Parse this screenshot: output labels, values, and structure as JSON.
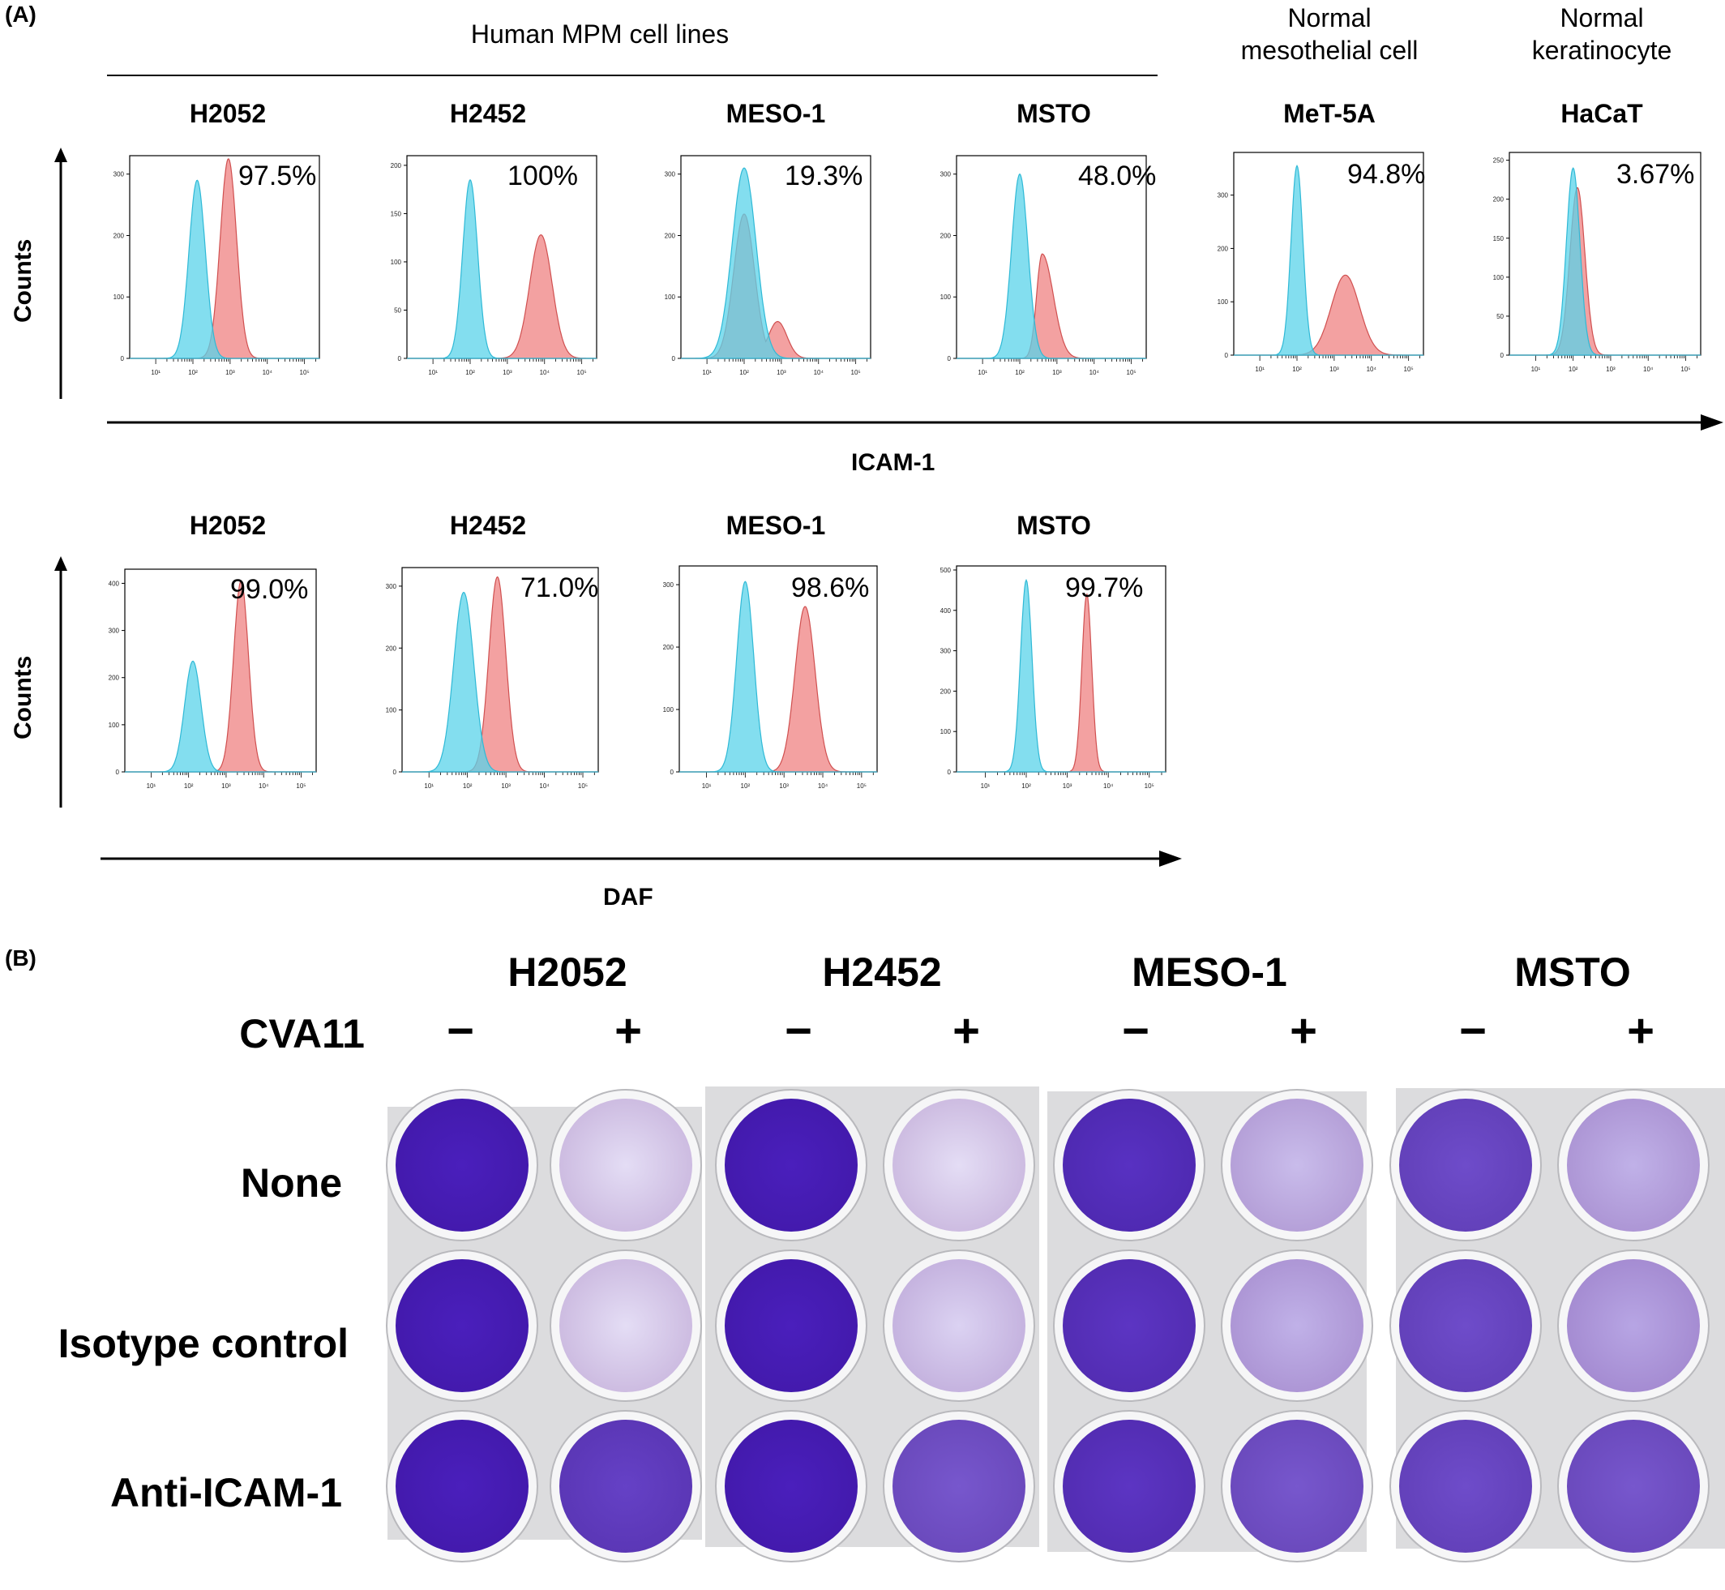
{
  "panel_a_letter": "(A)",
  "panel_b_letter": "(B)",
  "group_labels": {
    "mpm": "Human MPM cell lines",
    "mesothelial": "Normal mesothelial cell",
    "keratinocyte": "Normal keratinocyte"
  },
  "counts_label": "Counts",
  "icam_axis_label": "ICAM-1",
  "daf_axis_label": "DAF",
  "icam_histograms": [
    {
      "cell": "H2052",
      "pct": "97.5%",
      "y_ticks": [
        "0",
        "100",
        "200",
        "300"
      ],
      "y_max": 330
    },
    {
      "cell": "H2452",
      "pct": "100%",
      "y_ticks": [
        "0",
        "50",
        "100",
        "150",
        "200"
      ],
      "y_max": 210
    },
    {
      "cell": "MESO-1",
      "pct": "19.3%",
      "y_ticks": [
        "0",
        "100",
        "200",
        "300"
      ],
      "y_max": 330
    },
    {
      "cell": "MSTO",
      "pct": "48.0%",
      "y_ticks": [
        "0",
        "100",
        "200",
        "300"
      ],
      "y_max": 330
    },
    {
      "cell": "MeT-5A",
      "pct": "94.8%",
      "y_ticks": [
        "0",
        "100",
        "200",
        "300"
      ],
      "y_max": 380
    },
    {
      "cell": "HaCaT",
      "pct": "3.67%",
      "y_ticks": [
        "0",
        "50",
        "100",
        "150",
        "200",
        "250"
      ],
      "y_max": 260
    }
  ],
  "daf_histograms": [
    {
      "cell": "H2052",
      "pct": "99.0%",
      "y_ticks": [
        "0",
        "100",
        "200",
        "300",
        "400"
      ],
      "y_max": 430
    },
    {
      "cell": "H2452",
      "pct": "71.0%",
      "y_ticks": [
        "0",
        "100",
        "200",
        "300"
      ],
      "y_max": 330
    },
    {
      "cell": "MESO-1",
      "pct": "98.6%",
      "y_ticks": [
        "0",
        "100",
        "200",
        "300"
      ],
      "y_max": 330
    },
    {
      "cell": "MSTO",
      "pct": "99.7%",
      "y_ticks": [
        "0",
        "100",
        "200",
        "300",
        "400",
        "500"
      ],
      "y_max": 510
    }
  ],
  "x_ticks": [
    "10¹",
    "10²",
    "10³",
    "10⁴",
    "10⁵"
  ],
  "chart_data": [
    {
      "type": "area",
      "title": "H2052",
      "xlabel": "ICAM-1",
      "ylabel": "Counts",
      "x_scale": "log",
      "series": [
        {
          "color": "#5ad3ea",
          "peak_x": 130,
          "peak_y": 290
        },
        {
          "color": "#f08a8a",
          "peak_x": 900,
          "peak_y": 325
        }
      ],
      "annotation": "97.5%"
    },
    {
      "type": "area",
      "title": "H2452",
      "xlabel": "ICAM-1",
      "ylabel": "Counts",
      "x_scale": "log",
      "series": [
        {
          "color": "#5ad3ea",
          "peak_x": 100,
          "peak_y": 185
        },
        {
          "color": "#f08a8a",
          "peak_x": 8000,
          "peak_y": 128
        }
      ],
      "annotation": "100%"
    },
    {
      "type": "area",
      "title": "MESO-1",
      "xlabel": "ICAM-1",
      "ylabel": "Counts",
      "x_scale": "log",
      "series": [
        {
          "color": "#5ad3ea",
          "peak_x": 100,
          "peak_y": 310
        },
        {
          "color": "#f08a8a",
          "peak_x": 100,
          "peak_y": 235
        }
      ],
      "annotation": "19.3%"
    },
    {
      "type": "area",
      "title": "MSTO",
      "xlabel": "ICAM-1",
      "ylabel": "Counts",
      "x_scale": "log",
      "series": [
        {
          "color": "#5ad3ea",
          "peak_x": 100,
          "peak_y": 300
        },
        {
          "color": "#f08a8a",
          "peak_x": 400,
          "peak_y": 170
        }
      ],
      "annotation": "48.0%"
    },
    {
      "type": "area",
      "title": "MeT-5A",
      "xlabel": "ICAM-1",
      "ylabel": "Counts",
      "x_scale": "log",
      "series": [
        {
          "color": "#5ad3ea",
          "peak_x": 100,
          "peak_y": 355
        },
        {
          "color": "#f08a8a",
          "peak_x": 2000,
          "peak_y": 150
        }
      ],
      "annotation": "94.8%"
    },
    {
      "type": "area",
      "title": "HaCaT",
      "xlabel": "ICAM-1",
      "ylabel": "Counts",
      "x_scale": "log",
      "series": [
        {
          "color": "#5ad3ea",
          "peak_x": 100,
          "peak_y": 240
        },
        {
          "color": "#f08a8a",
          "peak_x": 130,
          "peak_y": 215
        }
      ],
      "annotation": "3.67%"
    },
    {
      "type": "area",
      "title": "H2052",
      "xlabel": "DAF",
      "ylabel": "Counts",
      "x_scale": "log",
      "series": [
        {
          "color": "#5ad3ea",
          "peak_x": 130,
          "peak_y": 235
        },
        {
          "color": "#f08a8a",
          "peak_x": 2500,
          "peak_y": 405
        }
      ],
      "annotation": "99.0%"
    },
    {
      "type": "area",
      "title": "H2452",
      "xlabel": "DAF",
      "ylabel": "Counts",
      "x_scale": "log",
      "series": [
        {
          "color": "#5ad3ea",
          "peak_x": 80,
          "peak_y": 290
        },
        {
          "color": "#f08a8a",
          "peak_x": 600,
          "peak_y": 315
        }
      ],
      "annotation": "71.0%"
    },
    {
      "type": "area",
      "title": "MESO-1",
      "xlabel": "DAF",
      "ylabel": "Counts",
      "x_scale": "log",
      "series": [
        {
          "color": "#5ad3ea",
          "peak_x": 100,
          "peak_y": 305
        },
        {
          "color": "#f08a8a",
          "peak_x": 3500,
          "peak_y": 265
        }
      ],
      "annotation": "98.6%"
    },
    {
      "type": "area",
      "title": "MSTO",
      "xlabel": "DAF",
      "ylabel": "Counts",
      "x_scale": "log",
      "series": [
        {
          "color": "#5ad3ea",
          "peak_x": 100,
          "peak_y": 475
        },
        {
          "color": "#f08a8a",
          "peak_x": 3000,
          "peak_y": 440
        }
      ],
      "annotation": "99.7%"
    }
  ],
  "panel_b": {
    "cva_label": "CVA11",
    "cells": [
      "H2052",
      "H2452",
      "MESO-1",
      "MSTO"
    ],
    "minus": "−",
    "plus": "+",
    "rows": [
      "None",
      "Isotype control",
      "Anti-ICAM-1"
    ],
    "well_intensity": [
      [
        [
          1.0,
          0.15
        ],
        [
          1.0,
          0.15
        ],
        [
          0.92,
          0.3
        ],
        [
          0.8,
          0.35
        ]
      ],
      [
        [
          1.0,
          0.15
        ],
        [
          1.0,
          0.2
        ],
        [
          0.9,
          0.35
        ],
        [
          0.8,
          0.4
        ]
      ],
      [
        [
          1.0,
          0.85
        ],
        [
          1.0,
          0.75
        ],
        [
          0.9,
          0.75
        ],
        [
          0.8,
          0.75
        ]
      ]
    ]
  },
  "colors": {
    "isotype": "#5ad3ea",
    "stain": "#f08a8a",
    "overlap": "#8a9db5",
    "crystal_violet": "#4a1fb5",
    "plate": "#dcdcde"
  }
}
